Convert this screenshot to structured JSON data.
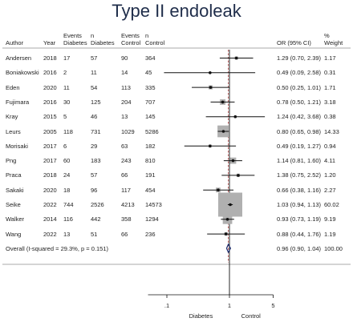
{
  "page": {
    "title": "Type II endoleak"
  },
  "table": {
    "headers": {
      "author": "Author",
      "year": "Year",
      "events_diabetes": [
        "Events",
        "Diabetes"
      ],
      "n_diabetes": [
        "n",
        "Diabetes"
      ],
      "events_control": [
        "Events",
        "Control"
      ],
      "n_control": [
        "n",
        "Control"
      ],
      "or_ci": "OR (95% CI)",
      "weight": [
        "%",
        "Weight"
      ]
    },
    "rows": [
      {
        "author": "Andersen",
        "year": "2018",
        "ed": "17",
        "nd": "57",
        "ec": "90",
        "nc": "364",
        "or_ci": "1.29 (0.70, 2.39)",
        "weight": "1.17"
      },
      {
        "author": "Boniakowski",
        "year": "2016",
        "ed": "2",
        "nd": "11",
        "ec": "14",
        "nc": "45",
        "or_ci": "0.49 (0.09, 2.58)",
        "weight": "0.31"
      },
      {
        "author": "Eden",
        "year": "2020",
        "ed": "11",
        "nd": "54",
        "ec": "113",
        "nc": "335",
        "or_ci": "0.50 (0.25, 1.01)",
        "weight": "1.71"
      },
      {
        "author": "Fujimara",
        "year": "2016",
        "ed": "30",
        "nd": "125",
        "ec": "204",
        "nc": "707",
        "or_ci": "0.78 (0.50, 1.21)",
        "weight": "3.18"
      },
      {
        "author": "Kray",
        "year": "2015",
        "ed": "5",
        "nd": "46",
        "ec": "13",
        "nc": "145",
        "or_ci": "1.24 (0.42, 3.68)",
        "weight": "0.38"
      },
      {
        "author": "Leurs",
        "year": "2005",
        "ed": "118",
        "nd": "731",
        "ec": "1029",
        "nc": "5286",
        "or_ci": "0.80 (0.65, 0.98)",
        "weight": "14.33"
      },
      {
        "author": "Morisaki",
        "year": "2017",
        "ed": "6",
        "nd": "29",
        "ec": "63",
        "nc": "182",
        "or_ci": "0.49 (0.19, 1.27)",
        "weight": "0.94"
      },
      {
        "author": "Png",
        "year": "2017",
        "ed": "60",
        "nd": "183",
        "ec": "243",
        "nc": "810",
        "or_ci": "1.14 (0.81, 1.60)",
        "weight": "4.11"
      },
      {
        "author": "Praca",
        "year": "2018",
        "ed": "24",
        "nd": "57",
        "ec": "66",
        "nc": "191",
        "or_ci": "1.38 (0.75, 2.52)",
        "weight": "1.20"
      },
      {
        "author": "Sakaki",
        "year": "2020",
        "ed": "18",
        "nd": "96",
        "ec": "117",
        "nc": "454",
        "or_ci": "0.66 (0.38, 1.16)",
        "weight": "2.27"
      },
      {
        "author": "Seike",
        "year": "2022",
        "ed": "744",
        "nd": "2526",
        "ec": "4213",
        "nc": "14573",
        "or_ci": "1.03 (0.94, 1.13)",
        "weight": "60.02"
      },
      {
        "author": "Walker",
        "year": "2014",
        "ed": "116",
        "nd": "442",
        "ec": "358",
        "nc": "1294",
        "or_ci": "0.93 (0.73, 1.19)",
        "weight": "9.19"
      },
      {
        "author": "Wang",
        "year": "2022",
        "ed": "13",
        "nd": "51",
        "ec": "66",
        "nc": "236",
        "or_ci": "0.88 (0.44, 1.76)",
        "weight": "1.19"
      }
    ],
    "overall": {
      "label": "Overall  (I-squared = 29.3%, p = 0.151)",
      "or_ci": "0.96 (0.90, 1.04)",
      "weight": "100.00"
    }
  },
  "chart_data": {
    "type": "forest",
    "title": "Type II endoleak",
    "x_scale": "log",
    "xlim": [
      0.05,
      5
    ],
    "x_ticks": [
      0.1,
      1,
      5
    ],
    "x_tick_labels": [
      ".1",
      "1",
      "5"
    ],
    "null_line": 1,
    "overall_line": 0.96,
    "side_labels": {
      "left": "Diabetes",
      "right": "Control"
    },
    "studies": [
      {
        "name": "Andersen",
        "or": 1.29,
        "lo": 0.7,
        "hi": 2.39,
        "weight": 1.17
      },
      {
        "name": "Boniakowski",
        "or": 0.49,
        "lo": 0.09,
        "hi": 2.58,
        "weight": 0.31
      },
      {
        "name": "Eden",
        "or": 0.5,
        "lo": 0.25,
        "hi": 1.01,
        "weight": 1.71
      },
      {
        "name": "Fujimara",
        "or": 0.78,
        "lo": 0.5,
        "hi": 1.21,
        "weight": 3.18
      },
      {
        "name": "Kray",
        "or": 1.24,
        "lo": 0.42,
        "hi": 3.68,
        "weight": 0.38
      },
      {
        "name": "Leurs",
        "or": 0.8,
        "lo": 0.65,
        "hi": 0.98,
        "weight": 14.33
      },
      {
        "name": "Morisaki",
        "or": 0.49,
        "lo": 0.19,
        "hi": 1.27,
        "weight": 0.94
      },
      {
        "name": "Png",
        "or": 1.14,
        "lo": 0.81,
        "hi": 1.6,
        "weight": 4.11
      },
      {
        "name": "Praca",
        "or": 1.38,
        "lo": 0.75,
        "hi": 2.52,
        "weight": 1.2
      },
      {
        "name": "Sakaki",
        "or": 0.66,
        "lo": 0.38,
        "hi": 1.16,
        "weight": 2.27
      },
      {
        "name": "Seike",
        "or": 1.03,
        "lo": 0.94,
        "hi": 1.13,
        "weight": 60.02
      },
      {
        "name": "Walker",
        "or": 0.93,
        "or_ci": "",
        "lo": 0.73,
        "hi": 1.19,
        "weight": 9.19
      },
      {
        "name": "Wang",
        "or": 0.88,
        "lo": 0.44,
        "hi": 1.76,
        "weight": 1.19
      }
    ],
    "overall": {
      "or": 0.96,
      "lo": 0.9,
      "hi": 1.04,
      "weight": 100.0
    },
    "colors": {
      "box": "#b0b0b0",
      "line": "#111111",
      "diamond": "#1a2a6c",
      "null_line": "#111111",
      "overall_line": "#b04040"
    }
  }
}
